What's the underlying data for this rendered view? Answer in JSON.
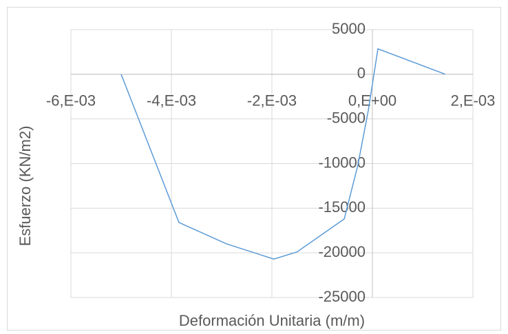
{
  "chart_data": {
    "type": "line",
    "xlabel": "Deformación Unitaria (m/m)",
    "ylabel": "Esfuerzo (KN/m2)",
    "series": [
      {
        "color": "#5b9bd5",
        "x": [
          -0.005,
          -0.00385,
          -0.0029,
          -0.00196,
          -0.0015,
          -0.00056,
          -0.00029,
          -8e-05,
          0.00011,
          0.00145
        ],
        "values": [
          0,
          -16600,
          -19000,
          -20700,
          -19900,
          -16200,
          -10200,
          -4000,
          2850,
          0
        ]
      }
    ],
    "xlim": [
      -0.006,
      0.002
    ],
    "xticks": [
      {
        "value": -0.006,
        "label": "-6,E-03"
      },
      {
        "value": -0.004,
        "label": "-4,E-03"
      },
      {
        "value": -0.002,
        "label": "-2,E-03"
      },
      {
        "value": 0,
        "label": "0,E+00"
      },
      {
        "value": 0.002,
        "label": "2,E-03"
      }
    ],
    "ylim": [
      -25000,
      5000
    ],
    "yticks": [
      5000,
      0,
      -5000,
      -10000,
      -15000,
      -20000,
      -25000
    ],
    "grid": true
  }
}
